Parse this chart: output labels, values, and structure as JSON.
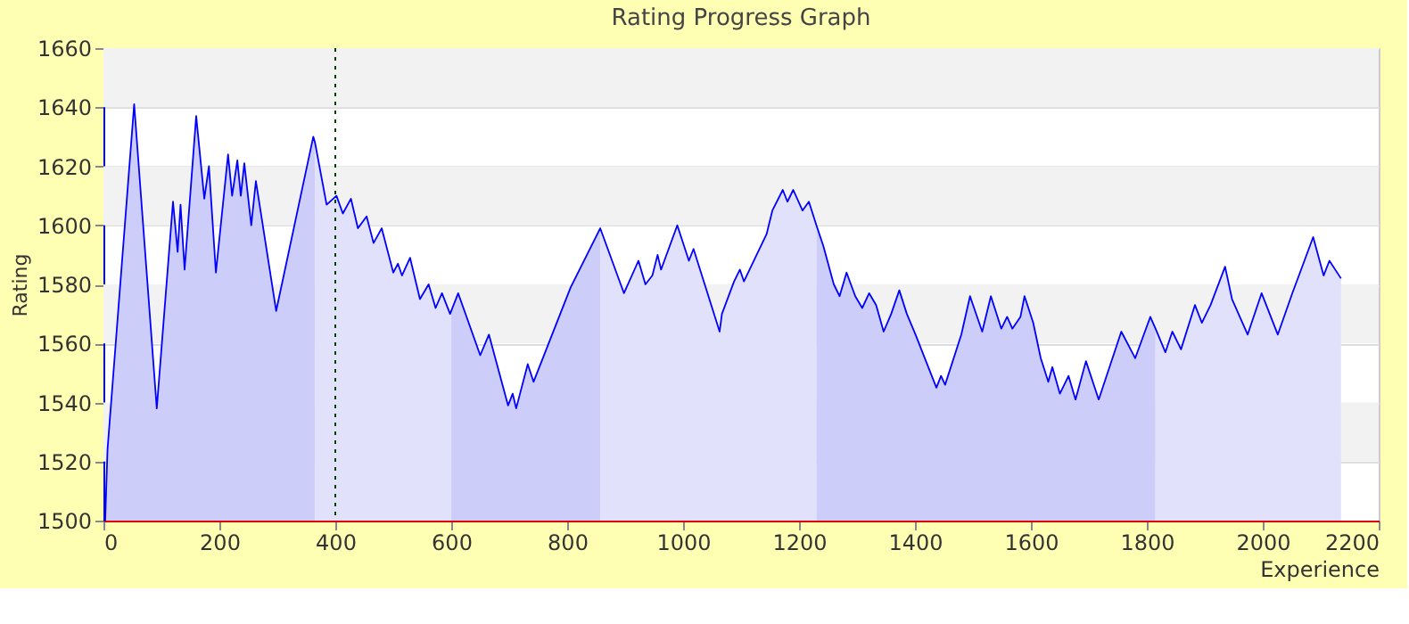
{
  "chart_data": {
    "type": "area",
    "title": "Rating Progress Graph",
    "xlabel": "Experience",
    "ylabel": "Rating",
    "xlim": [
      0,
      2200
    ],
    "xticks": [
      0,
      200,
      400,
      600,
      800,
      1000,
      1200,
      1400,
      1600,
      1800,
      2000,
      2200
    ],
    "ylim": [
      1500,
      1660
    ],
    "yticks": [
      1500,
      1520,
      1540,
      1560,
      1580,
      1600,
      1620,
      1640,
      1660
    ],
    "grid": "y",
    "marker": "none",
    "line_style": "solid",
    "ref_lines": [
      {
        "axis": "x",
        "value": 400,
        "color": "#004400",
        "line_style": "dotted"
      }
    ],
    "series": [
      {
        "color": "#cdcdf9",
        "x": [
          3,
          7,
          53,
          92,
          120,
          128,
          133,
          140,
          160,
          174,
          182,
          194,
          215,
          222,
          231,
          237,
          243,
          255,
          263,
          298,
          362,
          365
        ],
        "values": [
          1500,
          1524,
          1641,
          1538,
          1608,
          1591,
          1607,
          1585,
          1637,
          1609,
          1620,
          1584,
          1624,
          1610,
          1622,
          1610,
          1621,
          1600,
          1615,
          1571,
          1630,
          1628
        ]
      },
      {
        "color": "#e1e1fb",
        "x": [
          365,
          385,
          402,
          413,
          427,
          439,
          454,
          466,
          480,
          500,
          508,
          515,
          529,
          546,
          561,
          573,
          584,
          598,
          600
        ],
        "values": [
          1628,
          1607,
          1610,
          1604,
          1609,
          1599,
          1603,
          1594,
          1599,
          1584,
          1587,
          1583,
          1589,
          1575,
          1580,
          1572,
          1577,
          1570,
          1571
        ]
      },
      {
        "color": "#cdcdf9",
        "x": [
          600,
          612,
          650,
          665,
          698,
          706,
          712,
          732,
          742,
          806,
          857
        ],
        "values": [
          1571,
          1577,
          1556,
          1563,
          1539,
          1543,
          1538,
          1553,
          1547,
          1579,
          1599
        ]
      },
      {
        "color": "#e1e1fb",
        "x": [
          857,
          898,
          923,
          935,
          947,
          956,
          962,
          990,
          1010,
          1018,
          1063,
          1067,
          1088,
          1098,
          1105,
          1144,
          1154,
          1172,
          1180,
          1190,
          1206,
          1217,
          1230
        ],
        "values": [
          1599,
          1577,
          1588,
          1580,
          1583,
          1590,
          1585,
          1600,
          1588,
          1592,
          1564,
          1570,
          1581,
          1585,
          1581,
          1597,
          1605,
          1612,
          1608,
          1612,
          1605,
          1608,
          1600
        ]
      },
      {
        "color": "#cdcdf9",
        "x": [
          1230,
          1242,
          1260,
          1270,
          1282,
          1297,
          1309,
          1321,
          1333,
          1346,
          1359,
          1373,
          1386,
          1401,
          1437,
          1445,
          1452,
          1480,
          1495,
          1516,
          1531,
          1549,
          1559,
          1568,
          1582,
          1589,
          1604,
          1617,
          1630,
          1637,
          1650,
          1665,
          1677,
          1695,
          1717,
          1756,
          1780,
          1806,
          1815
        ],
        "values": [
          1600,
          1593,
          1580,
          1576,
          1584,
          1576,
          1572,
          1577,
          1573,
          1564,
          1570,
          1578,
          1570,
          1563,
          1545,
          1549,
          1546,
          1563,
          1576,
          1564,
          1576,
          1565,
          1569,
          1565,
          1569,
          1576,
          1567,
          1555,
          1547,
          1552,
          1543,
          1549,
          1541,
          1554,
          1541,
          1564,
          1555,
          1569,
          1565
        ]
      },
      {
        "color": "#e1e1fb",
        "x": [
          1815,
          1832,
          1844,
          1859,
          1883,
          1895,
          1910,
          1935,
          1947,
          1974,
          1998,
          2026,
          2051,
          2087,
          2105,
          2115,
          2135
        ],
        "values": [
          1565,
          1557,
          1564,
          1558,
          1573,
          1567,
          1573,
          1586,
          1575,
          1563,
          1577,
          1563,
          1577,
          1596,
          1583,
          1588,
          1582
        ]
      },
      {
        "type": "line",
        "color": "#0000ff",
        "x": [
          3,
          7,
          53,
          92,
          120,
          128,
          133,
          140,
          160,
          174,
          182,
          194,
          215,
          222,
          231,
          237,
          243,
          255,
          263,
          298,
          362,
          365,
          385,
          402,
          413,
          427,
          439,
          454,
          466,
          480,
          500,
          508,
          515,
          529,
          546,
          561,
          573,
          584,
          598,
          600,
          612,
          650,
          665,
          698,
          706,
          712,
          732,
          742,
          806,
          857,
          898,
          923,
          935,
          947,
          956,
          962,
          990,
          1010,
          1018,
          1063,
          1067,
          1088,
          1098,
          1105,
          1144,
          1154,
          1172,
          1180,
          1190,
          1206,
          1217,
          1230,
          1242,
          1260,
          1270,
          1282,
          1297,
          1309,
          1321,
          1333,
          1346,
          1359,
          1373,
          1386,
          1401,
          1437,
          1445,
          1452,
          1480,
          1495,
          1516,
          1531,
          1549,
          1559,
          1568,
          1582,
          1589,
          1604,
          1617,
          1630,
          1637,
          1650,
          1665,
          1677,
          1695,
          1717,
          1756,
          1780,
          1806,
          1815,
          1832,
          1844,
          1859,
          1883,
          1895,
          1910,
          1935,
          1947,
          1974,
          1998,
          2026,
          2051,
          2087,
          2105,
          2115,
          2135
        ],
        "values": [
          1500,
          1524,
          1641,
          1538,
          1608,
          1591,
          1607,
          1585,
          1637,
          1609,
          1620,
          1584,
          1624,
          1610,
          1622,
          1610,
          1621,
          1600,
          1615,
          1571,
          1630,
          1628,
          1607,
          1610,
          1604,
          1609,
          1599,
          1603,
          1594,
          1599,
          1584,
          1587,
          1583,
          1589,
          1575,
          1580,
          1572,
          1577,
          1570,
          1571,
          1577,
          1556,
          1563,
          1539,
          1543,
          1538,
          1553,
          1547,
          1579,
          1599,
          1577,
          1588,
          1580,
          1583,
          1590,
          1585,
          1600,
          1588,
          1592,
          1564,
          1570,
          1581,
          1585,
          1581,
          1597,
          1605,
          1612,
          1608,
          1612,
          1605,
          1608,
          1600,
          1593,
          1580,
          1576,
          1584,
          1576,
          1572,
          1577,
          1573,
          1564,
          1570,
          1578,
          1570,
          1563,
          1545,
          1549,
          1546,
          1563,
          1576,
          1564,
          1576,
          1565,
          1569,
          1565,
          1569,
          1576,
          1567,
          1555,
          1547,
          1552,
          1543,
          1549,
          1541,
          1554,
          1541,
          1564,
          1555,
          1569,
          1565,
          1557,
          1564,
          1558,
          1573,
          1567,
          1573,
          1586,
          1575,
          1563,
          1577,
          1563,
          1577,
          1596,
          1583,
          1588,
          1582
        ]
      }
    ]
  }
}
